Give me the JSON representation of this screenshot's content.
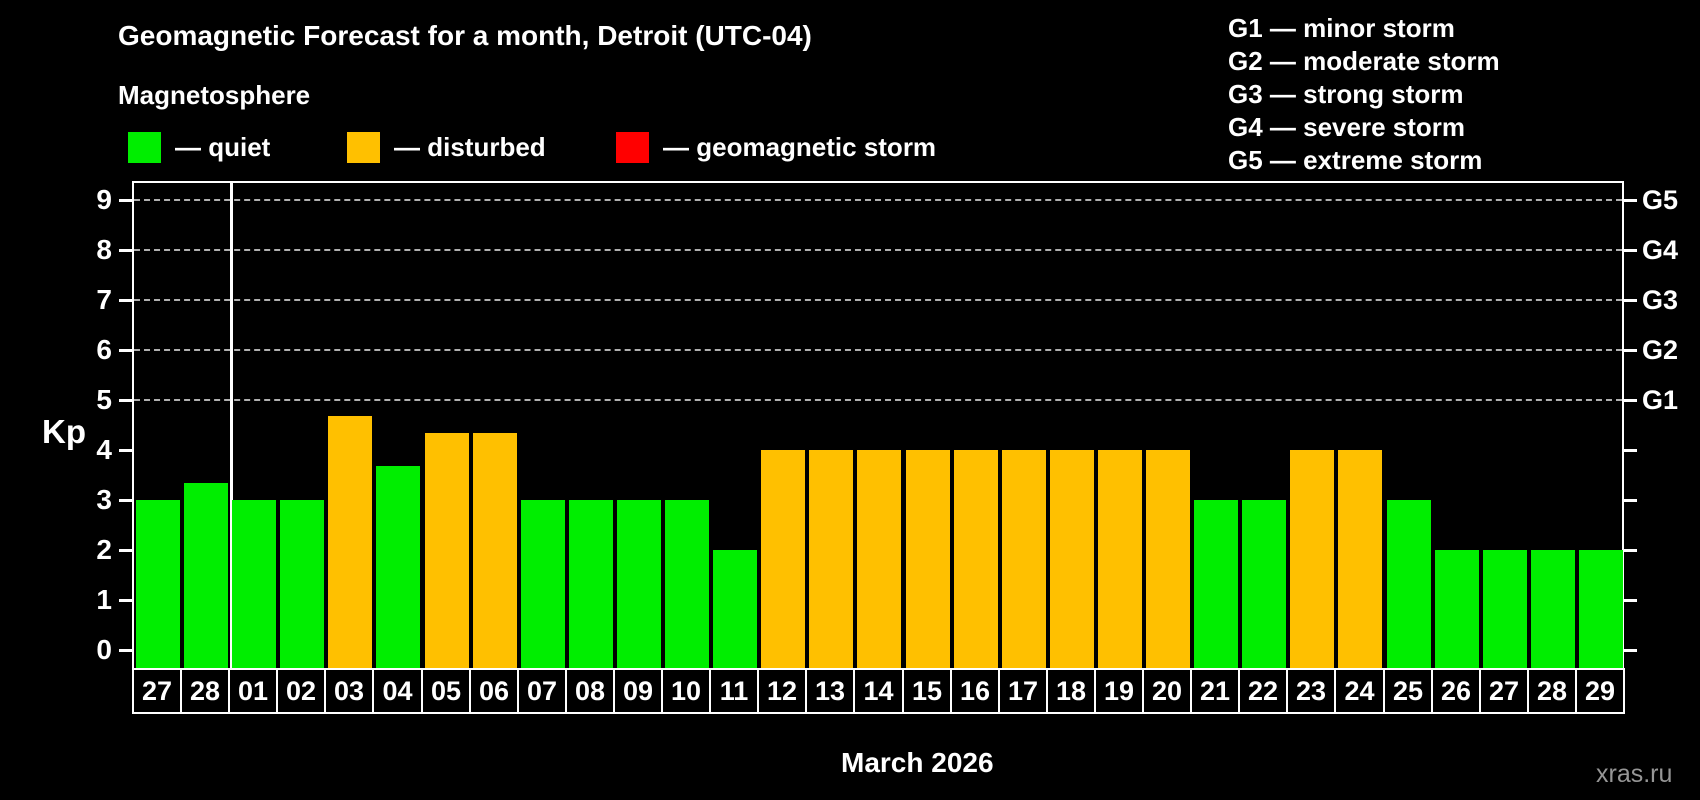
{
  "header": {
    "title": "Geomagnetic Forecast for a month, Detroit (UTC-04)",
    "subtitle": "Magnetosphere",
    "legend": [
      {
        "name": "quiet",
        "color": "#00ee00",
        "label": "— quiet"
      },
      {
        "name": "disturbed",
        "color": "#ffc000",
        "label": "— disturbed"
      },
      {
        "name": "storm",
        "color": "#ff0000",
        "label": "— geomagnetic storm"
      }
    ],
    "g_legend": [
      "G1 — minor storm",
      "G2 — moderate storm",
      "G3 — strong storm",
      "G4 — severe storm",
      "G5 — extreme storm"
    ]
  },
  "chart_data": {
    "type": "bar",
    "title": "Geomagnetic Forecast for a month, Detroit (UTC-04)",
    "ylabel": "Kp",
    "xlabel": "March 2026",
    "ylim": [
      0,
      9
    ],
    "yticks": [
      0,
      1,
      2,
      3,
      4,
      5,
      6,
      7,
      8,
      9
    ],
    "grid": "horizontal dashed lines at Kp 5 to 9",
    "legend_position": "top-left",
    "right_axis": [
      {
        "kp": 5,
        "label": "G1"
      },
      {
        "kp": 6,
        "label": "G2"
      },
      {
        "kp": 7,
        "label": "G3"
      },
      {
        "kp": 8,
        "label": "G4"
      },
      {
        "kp": 9,
        "label": "G5"
      }
    ],
    "categories": [
      "27",
      "28",
      "01",
      "02",
      "03",
      "04",
      "05",
      "06",
      "07",
      "08",
      "09",
      "10",
      "11",
      "12",
      "13",
      "14",
      "15",
      "16",
      "17",
      "18",
      "19",
      "20",
      "21",
      "22",
      "23",
      "24",
      "25",
      "26",
      "27",
      "28",
      "29"
    ],
    "values": [
      3,
      3.33,
      3,
      3,
      4.67,
      3.67,
      4.33,
      4.33,
      3,
      3,
      3,
      3,
      2,
      4,
      4,
      4,
      4,
      4,
      4,
      4,
      4,
      4,
      3,
      3,
      4,
      4,
      3,
      2,
      2,
      2,
      2
    ],
    "status": [
      "quiet",
      "quiet",
      "quiet",
      "quiet",
      "disturbed",
      "quiet",
      "disturbed",
      "disturbed",
      "quiet",
      "quiet",
      "quiet",
      "quiet",
      "quiet",
      "disturbed",
      "disturbed",
      "disturbed",
      "disturbed",
      "disturbed",
      "disturbed",
      "disturbed",
      "disturbed",
      "disturbed",
      "quiet",
      "quiet",
      "disturbed",
      "disturbed",
      "quiet",
      "quiet",
      "quiet",
      "quiet",
      "quiet"
    ],
    "series_colors": {
      "quiet": "#00ee00",
      "disturbed": "#ffc000",
      "storm": "#ff0000"
    },
    "month_separator_after": 2
  },
  "footer": {
    "watermark": "xras.ru"
  }
}
